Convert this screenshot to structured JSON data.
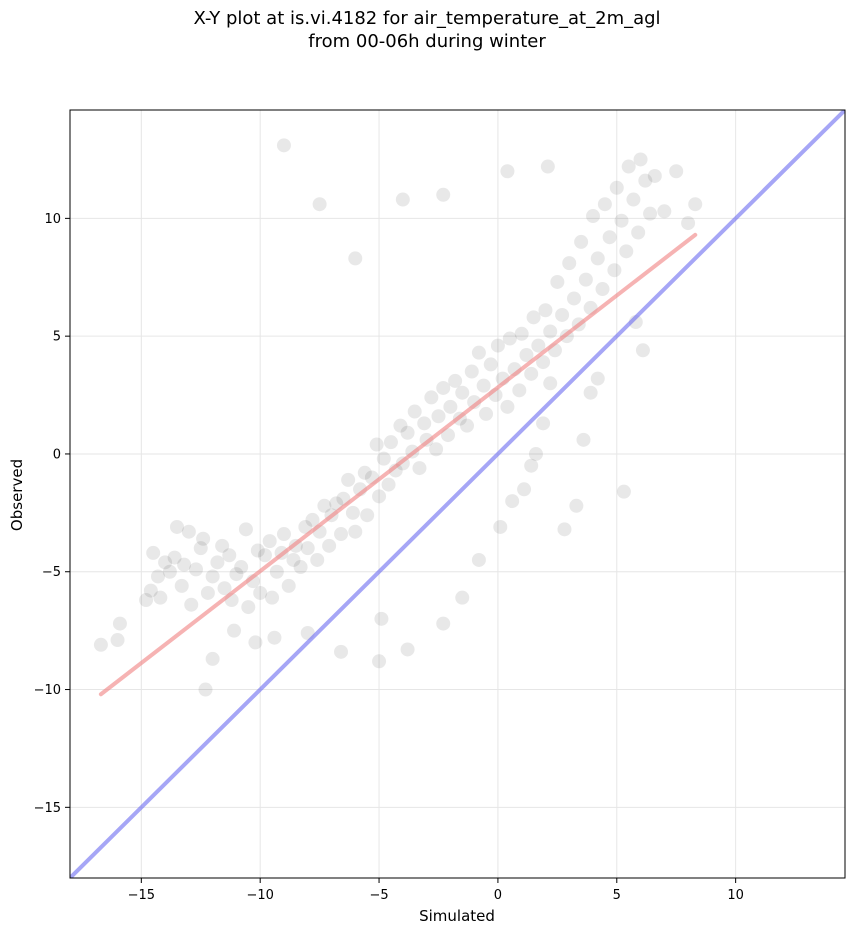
{
  "chart_data": {
    "type": "scatter",
    "title": "X-Y plot at is.vi.4182 for air_temperature_at_2m_agl",
    "subtitle": "from 00-06h during winter",
    "xlabel": "Simulated",
    "ylabel": "Observed",
    "xlim": [
      -18,
      14.6
    ],
    "ylim": [
      -18,
      14.6
    ],
    "x_ticks": [
      -15,
      -10,
      -5,
      0,
      5,
      10
    ],
    "y_ticks": [
      -15,
      -10,
      -5,
      0,
      5,
      10
    ],
    "x_tick_labels": [
      "−15",
      "−10",
      "−5",
      "0",
      "5",
      "10"
    ],
    "y_tick_labels": [
      "−15",
      "−10",
      "−5",
      "0",
      "5",
      "10"
    ],
    "grid": true,
    "colors": {
      "points": "#000000",
      "regression_line": "#f08080",
      "identity_line": "#6b6bf0"
    },
    "series": [
      {
        "kind": "points",
        "x": [
          -16.7,
          -16.0,
          -15.9,
          -14.8,
          -14.6,
          -14.5,
          -14.3,
          -14.2,
          -14.0,
          -13.8,
          -13.6,
          -13.5,
          -13.3,
          -13.2,
          -13.0,
          -12.9,
          -12.7,
          -12.5,
          -12.4,
          -12.2,
          -12.0,
          -11.8,
          -11.6,
          -11.5,
          -11.3,
          -11.2,
          -11.0,
          -10.8,
          -10.6,
          -10.5,
          -10.3,
          -10.1,
          -10.0,
          -9.8,
          -9.6,
          -9.5,
          -9.3,
          -9.1,
          -9.0,
          -8.8,
          -8.6,
          -8.5,
          -8.3,
          -8.1,
          -8.0,
          -7.8,
          -7.6,
          -7.5,
          -7.3,
          -7.1,
          -7.0,
          -6.8,
          -6.6,
          -6.5,
          -6.3,
          -6.1,
          -6.0,
          -5.8,
          -5.6,
          -5.5,
          -5.3,
          -5.1,
          -5.0,
          -4.8,
          -4.6,
          -4.5,
          -4.3,
          -4.1,
          -4.0,
          -3.8,
          -3.6,
          -3.5,
          -3.3,
          -3.1,
          -3.0,
          -2.8,
          -2.6,
          -2.5,
          -2.3,
          -2.1,
          -2.0,
          -1.8,
          -1.6,
          -1.5,
          -1.3,
          -1.1,
          -1.0,
          -0.8,
          -0.6,
          -0.5,
          -0.3,
          -0.1,
          0.0,
          0.2,
          0.4,
          0.5,
          0.7,
          0.9,
          1.0,
          1.2,
          1.4,
          1.5,
          1.7,
          1.9,
          2.0,
          2.2,
          2.4,
          2.5,
          2.7,
          2.9,
          3.0,
          3.2,
          3.4,
          3.5,
          3.7,
          3.9,
          4.0,
          4.2,
          4.4,
          4.5,
          4.7,
          4.9,
          5.0,
          5.2,
          5.4,
          5.5,
          5.7,
          5.9,
          6.0,
          6.2,
          6.4,
          6.6,
          7.0,
          7.5,
          8.0,
          8.3,
          -12.3,
          -12.0,
          -11.1,
          -10.2,
          -9.4,
          -8.0,
          -6.6,
          -5.0,
          -4.9,
          -3.8,
          -2.3,
          -1.5,
          -0.8,
          0.1,
          0.6,
          1.1,
          1.4,
          1.6,
          1.9,
          2.2,
          2.8,
          3.3,
          3.6,
          3.9,
          4.2,
          5.3,
          5.8,
          6.1,
          2.1,
          0.4,
          -2.3,
          -4.0,
          -6.0,
          -7.5,
          -9.0
        ],
        "y": [
          -8.1,
          -7.9,
          -7.2,
          -6.2,
          -5.8,
          -4.2,
          -5.2,
          -6.1,
          -4.6,
          -5.0,
          -4.4,
          -3.1,
          -5.6,
          -4.7,
          -3.3,
          -6.4,
          -4.9,
          -4.0,
          -3.6,
          -5.9,
          -5.2,
          -4.6,
          -3.9,
          -5.7,
          -4.3,
          -6.2,
          -5.1,
          -4.8,
          -3.2,
          -6.5,
          -5.4,
          -4.1,
          -5.9,
          -4.3,
          -3.7,
          -6.1,
          -5.0,
          -4.2,
          -3.4,
          -5.6,
          -4.5,
          -3.9,
          -4.8,
          -3.1,
          -4.0,
          -2.8,
          -4.5,
          -3.3,
          -2.2,
          -3.9,
          -2.6,
          -2.1,
          -3.4,
          -1.9,
          -1.1,
          -2.5,
          -3.3,
          -1.5,
          -0.8,
          -2.6,
          -1.0,
          0.4,
          -1.8,
          -0.2,
          -1.3,
          0.5,
          -0.7,
          1.2,
          -0.4,
          0.9,
          0.1,
          1.8,
          -0.6,
          1.3,
          0.6,
          2.4,
          0.2,
          1.6,
          2.8,
          0.8,
          2.0,
          3.1,
          1.5,
          2.6,
          1.2,
          3.5,
          2.2,
          4.3,
          2.9,
          1.7,
          3.8,
          2.5,
          4.6,
          3.2,
          2.0,
          4.9,
          3.6,
          2.7,
          5.1,
          4.2,
          3.4,
          5.8,
          4.6,
          3.9,
          6.1,
          5.2,
          4.4,
          7.3,
          5.9,
          5.0,
          8.1,
          6.6,
          5.5,
          9.0,
          7.4,
          6.2,
          10.1,
          8.3,
          7.0,
          10.6,
          9.2,
          7.8,
          11.3,
          9.9,
          8.6,
          12.2,
          10.8,
          9.4,
          12.5,
          11.6,
          10.2,
          11.8,
          10.3,
          12.0,
          9.8,
          10.6,
          -10.0,
          -8.7,
          -7.5,
          -8.0,
          -7.8,
          -7.6,
          -8.4,
          -8.8,
          -7.0,
          -8.3,
          -7.2,
          -6.1,
          -4.5,
          -3.1,
          -2.0,
          -1.5,
          -0.5,
          0.0,
          1.3,
          3.0,
          -3.2,
          -2.2,
          0.6,
          2.6,
          3.2,
          -1.6,
          5.6,
          4.4,
          12.2,
          12.0,
          11.0,
          10.8,
          8.3,
          10.6,
          13.1
        ]
      },
      {
        "kind": "regression_line",
        "x": [
          -16.7,
          8.3
        ],
        "y": [
          -10.2,
          9.3
        ]
      },
      {
        "kind": "identity_line",
        "x": [
          -18,
          14.6
        ],
        "y": [
          -18,
          14.6
        ]
      }
    ]
  }
}
